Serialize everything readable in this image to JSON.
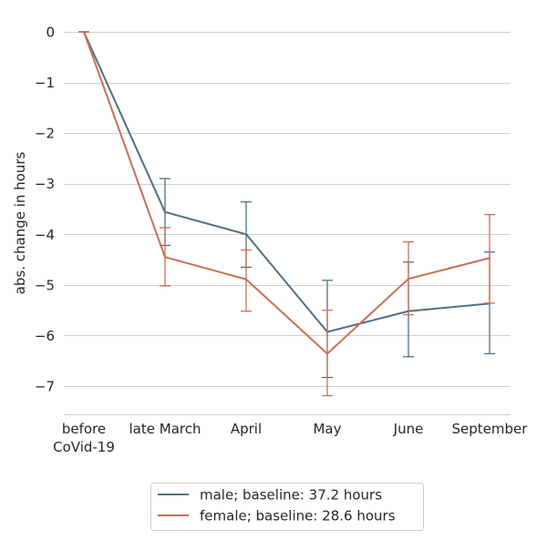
{
  "chart_data": {
    "type": "line",
    "title": "",
    "xlabel": "",
    "ylabel": "abs. change in hours",
    "categories": [
      [
        "before",
        "CoVid-19"
      ],
      [
        "late March"
      ],
      [
        "April"
      ],
      [
        "May"
      ],
      [
        "June"
      ],
      [
        "September"
      ]
    ],
    "yticks": [
      0,
      -1,
      -2,
      -3,
      -4,
      -5,
      -6,
      -7
    ],
    "ytick_labels": [
      "0",
      "−1",
      "−2",
      "−3",
      "−4",
      "−5",
      "−6",
      "−7"
    ],
    "ylim": [
      -7.55,
      0.3
    ],
    "grid": "horizontal",
    "legend_position": "bottom-center",
    "series": [
      {
        "name": "male; baseline: 37.2 hours",
        "color": "#4e7082",
        "values": [
          0,
          -3.56,
          -4.0,
          -5.93,
          -5.52,
          -5.37
        ],
        "err_low": [
          0,
          -4.22,
          -4.65,
          -6.83,
          -6.42,
          -6.36
        ],
        "err_high": [
          0,
          -2.9,
          -3.36,
          -4.91,
          -4.55,
          -4.35
        ]
      },
      {
        "name": "female; baseline: 28.6 hours",
        "color": "#c96f55",
        "values": [
          0,
          -4.45,
          -4.89,
          -6.36,
          -4.88,
          -4.47
        ],
        "err_low": [
          0,
          -5.02,
          -5.52,
          -7.19,
          -5.59,
          -5.36
        ],
        "err_high": [
          0,
          -3.87,
          -4.31,
          -5.5,
          -4.15,
          -3.61
        ]
      }
    ]
  }
}
